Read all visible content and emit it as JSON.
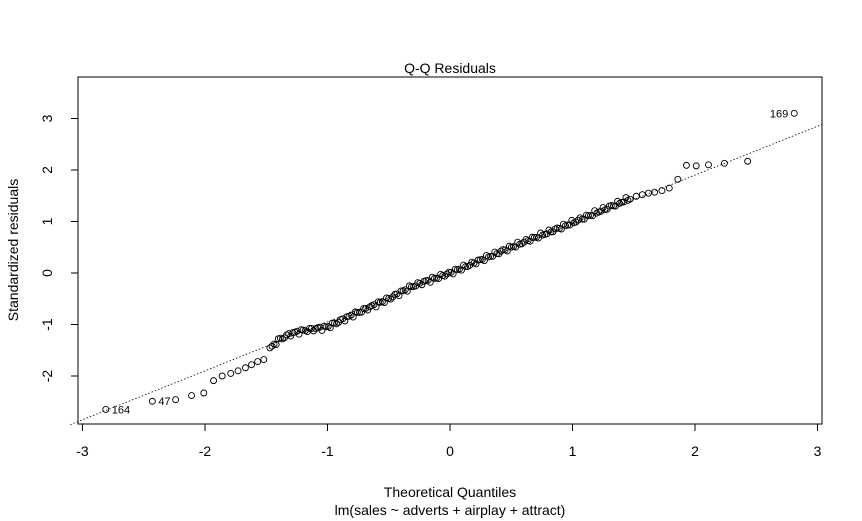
{
  "chart_data": {
    "type": "scatter",
    "title": "Q-Q Residuals",
    "xlabel": "Theoretical Quantiles",
    "ylabel": "Standardized residuals",
    "subtitle": "lm(sales ~ adverts + airplay + attract)",
    "xlim": [
      -3,
      3
    ],
    "ylim": [
      -2,
      3
    ],
    "x_ticks": [
      -3,
      -2,
      -1,
      0,
      1,
      2,
      3
    ],
    "y_ticks": [
      -2,
      -1,
      0,
      1,
      2,
      3
    ],
    "x_tick_labels": [
      "-3",
      "-2",
      "-1",
      "0",
      "1",
      "2",
      "3"
    ],
    "y_tick_labels": [
      "-2",
      "-1",
      "0",
      "1",
      "2",
      "3"
    ],
    "grid": false,
    "reference_line": {
      "style": "dotted",
      "slope": 0.95,
      "intercept": 0.0
    },
    "n_points": 200,
    "points_low_x": [
      -2.81,
      -2.43,
      -2.24,
      -2.11,
      -2.01,
      -1.93,
      -1.86,
      -1.79,
      -1.73,
      -1.67,
      -1.62,
      -1.57,
      -1.52
    ],
    "points_low_y": [
      -2.65,
      -2.49,
      -2.46,
      -2.38,
      -2.33,
      -2.09,
      -2.0,
      -1.95,
      -1.9,
      -1.84,
      -1.78,
      -1.72,
      -1.68
    ],
    "points_high_x": [
      1.52,
      1.57,
      1.62,
      1.67,
      1.73,
      1.79,
      1.86,
      1.93,
      2.01,
      2.11,
      2.24,
      2.43,
      2.81
    ],
    "points_high_y": [
      1.49,
      1.52,
      1.55,
      1.57,
      1.6,
      1.65,
      1.82,
      2.09,
      2.08,
      2.1,
      2.13,
      2.17,
      3.1
    ],
    "middle_profile_x": [
      -1.5,
      -1.4,
      -1.3,
      -1.2,
      -1.0,
      -0.8,
      -0.5,
      -0.3,
      0.0,
      0.3,
      0.6,
      0.9,
      1.2,
      1.5
    ],
    "middle_profile_y": [
      -1.55,
      -1.3,
      -1.18,
      -1.12,
      -1.05,
      -0.82,
      -0.5,
      -0.25,
      0.0,
      0.3,
      0.6,
      0.88,
      1.18,
      1.48
    ],
    "annotations": [
      {
        "label": "169",
        "x": 2.81,
        "y": 3.1,
        "side": "left"
      },
      {
        "label": "164",
        "x": -2.81,
        "y": -2.65,
        "side": "right"
      },
      {
        "label": "47",
        "x": -2.43,
        "y": -2.49,
        "side": "right"
      }
    ]
  }
}
